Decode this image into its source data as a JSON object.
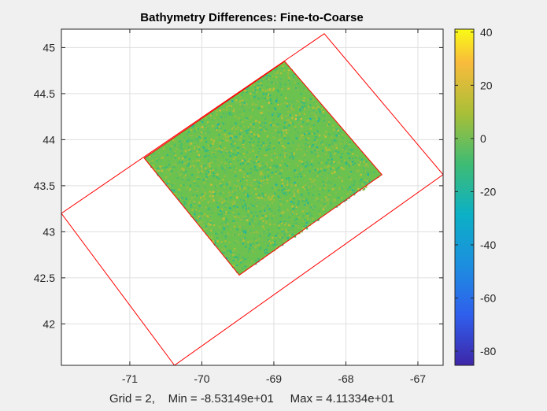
{
  "chart_data": {
    "type": "heatmap",
    "title": "Bathymetry Differences: Fine-to-Coarse",
    "xlabel": "Grid = 2,    Min = -8.53149e+01     Max = 4.11334e+01",
    "ylabel": "",
    "xlim": [
      -71.95,
      -66.65
    ],
    "ylim": [
      41.55,
      45.2
    ],
    "xticks": [
      -71,
      -70,
      -69,
      -68,
      -67
    ],
    "yticks": [
      42,
      42.5,
      43,
      43.5,
      44,
      44.5,
      45
    ],
    "grid": true,
    "colorbar": {
      "limits": [
        -85.3149,
        41.1334
      ],
      "ticks": [
        -80,
        -60,
        -40,
        -20,
        0,
        20,
        40
      ],
      "colormap": "parula"
    },
    "outer_boundary": [
      [
        -71.95,
        43.2
      ],
      [
        -68.3,
        45.15
      ],
      [
        -66.65,
        43.62
      ],
      [
        -70.38,
        41.55
      ]
    ],
    "inner_region": [
      [
        -70.8,
        43.8
      ],
      [
        -68.85,
        44.85
      ],
      [
        -67.5,
        43.62
      ],
      [
        -69.48,
        42.53
      ]
    ],
    "data_summary": {
      "grid": 2,
      "min": -85.3149,
      "max": 41.1334,
      "typical_value": -5
    }
  },
  "colors": {
    "boundary": "#ff0000",
    "field_base": "#6cc24e",
    "axes": "#262626",
    "grid": "#dfdfdf",
    "plot_bg": "#ffffff",
    "figure_bg": "#f0f0f0"
  }
}
